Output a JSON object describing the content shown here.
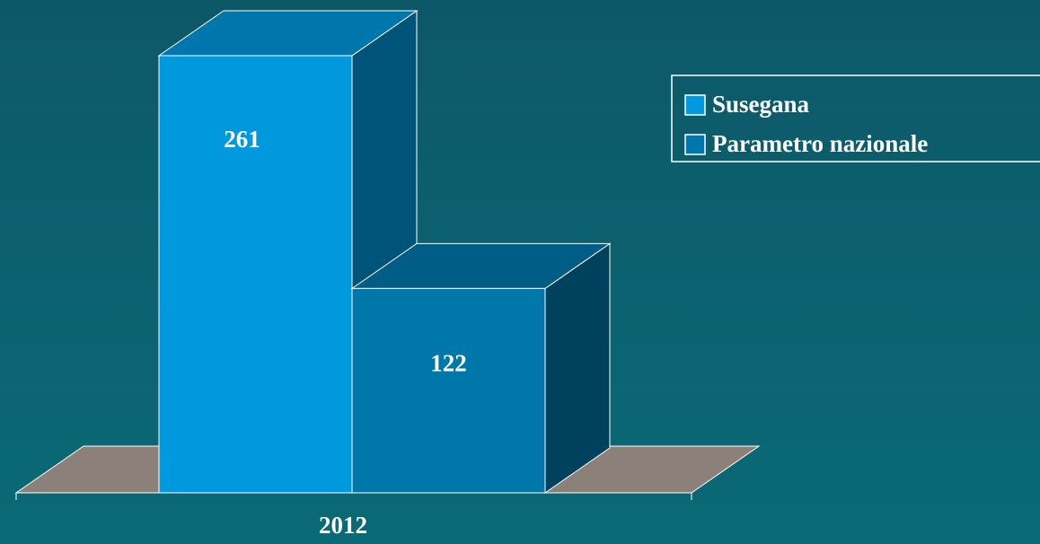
{
  "chart_data": {
    "type": "bar3d",
    "categories": [
      "2012"
    ],
    "series": [
      {
        "name": "Susegana",
        "color": "#0099dd",
        "values": [
          261
        ]
      },
      {
        "name": "Parametro nazionale",
        "color": "#0077aa",
        "values": [
          122
        ]
      }
    ],
    "legend": "right"
  }
}
